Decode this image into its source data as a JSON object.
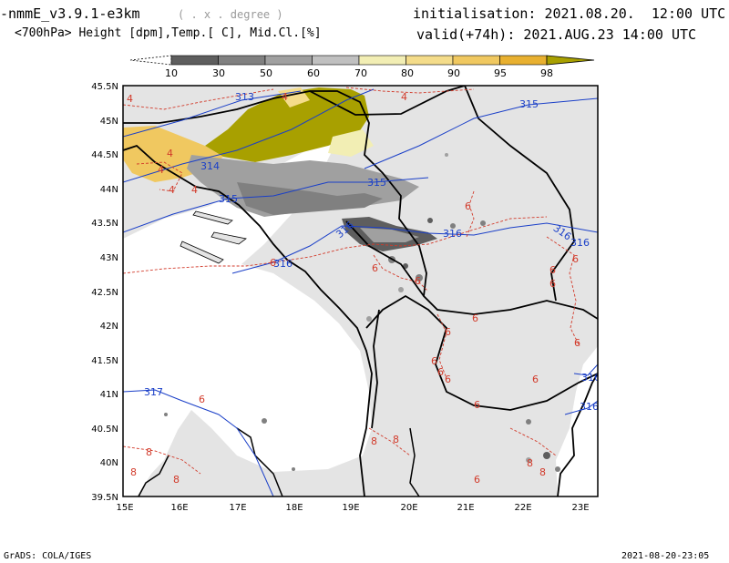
{
  "header": {
    "model": "-nmmE_v3.9.1-e3km",
    "proj": "( . x . degree )",
    "fields": "<700hPa> Height [dpm],Temp.[ C], Mid.Cl.[%]",
    "init": "initialisation: 2021.08.20.  12:00 UTC",
    "valid": "valid(+74h): 2021.AUG.23 14:00 UTC"
  },
  "colorbar": {
    "labels": [
      "10",
      "30",
      "50",
      "60",
      "70",
      "80",
      "90",
      "95",
      "98"
    ],
    "colors": [
      "#5e5e5e",
      "#808080",
      "#a0a0a0",
      "#c0c0c0",
      "#f2eeb4",
      "#f4dc8a",
      "#f0c860",
      "#e8b030",
      "#a8a000"
    ]
  },
  "axes": {
    "lat_labels": [
      "45.5N",
      "45N",
      "44.5N",
      "44N",
      "43.5N",
      "43N",
      "42.5N",
      "42N",
      "41.5N",
      "41N",
      "40.5N",
      "40N",
      "39.5N"
    ],
    "lon_labels": [
      "15E",
      "16E",
      "17E",
      "18E",
      "19E",
      "20E",
      "21E",
      "22E",
      "23E"
    ]
  },
  "height_labels": [
    "313",
    "315",
    "314",
    "315",
    "315",
    "316",
    "316",
    "316",
    "316",
    "316",
    "317",
    "316",
    "316"
  ],
  "temp_labels": [
    "4",
    "4",
    "4",
    "4",
    "4",
    "4",
    "4",
    "6",
    "6",
    "6",
    "6",
    "6",
    "6",
    "6",
    "6",
    "6",
    "6",
    "6",
    "6",
    "6",
    "6",
    "6",
    "6",
    "8",
    "8",
    "8",
    "8",
    "8",
    "8",
    "8",
    "6"
  ],
  "footer": {
    "left": "GrADS: COLA/IGES",
    "right": "2021-08-20-23:05"
  },
  "colors": {
    "land": "#e4e4e4",
    "height_contour": "#1a3fc8",
    "temp_contour": "#d23a2a"
  }
}
